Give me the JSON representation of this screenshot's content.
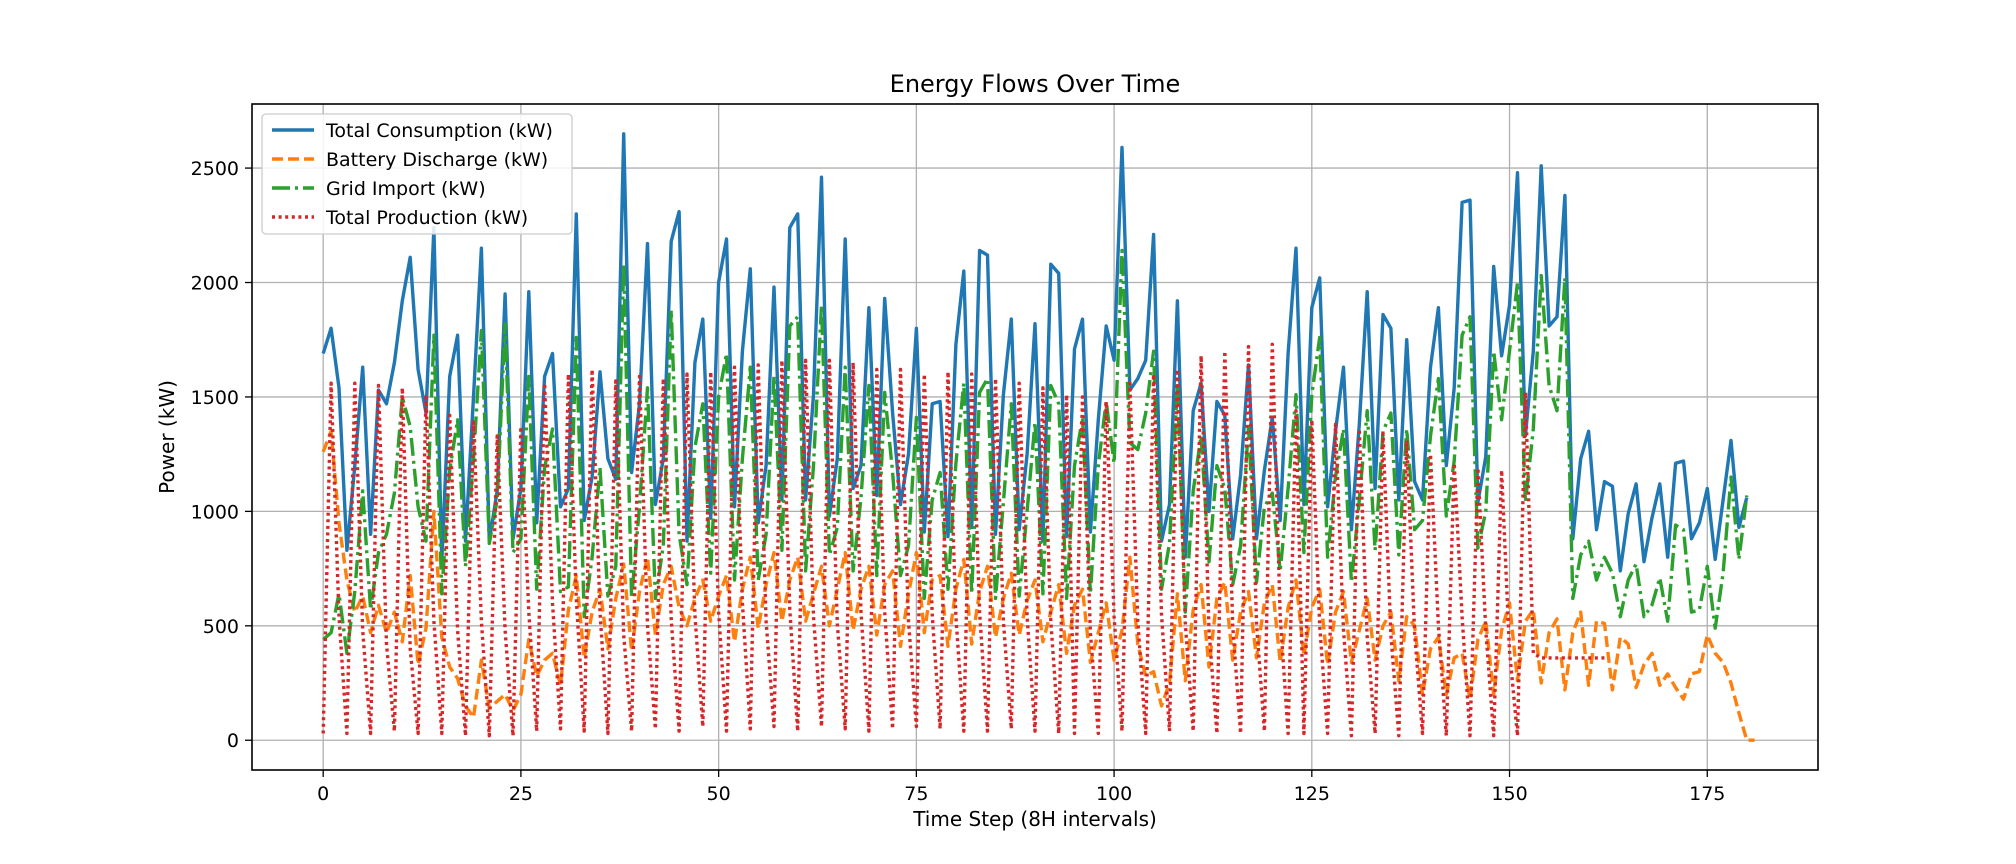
{
  "chart_data": {
    "type": "line",
    "title": "Energy Flows Over Time",
    "xlabel": "Time Step (8H intervals)",
    "ylabel": "Power (kW)",
    "xlim": [
      -9,
      189
    ],
    "ylim": [
      -130,
      2780
    ],
    "x_ticks": [
      0,
      25,
      50,
      75,
      100,
      125,
      150,
      175
    ],
    "y_ticks": [
      0,
      500,
      1000,
      1500,
      2000,
      2500
    ],
    "grid": true,
    "legend_position": "upper-left",
    "series": [
      {
        "name": "Total Consumption (kW)",
        "color": "#1f77b4",
        "style": "solid",
        "values": [
          1690,
          1800,
          1540,
          830,
          1200,
          1630,
          900,
          1530,
          1470,
          1650,
          1920,
          2110,
          1620,
          1430,
          2240,
          780,
          1590,
          1770,
          870,
          1500,
          2150,
          870,
          1090,
          1950,
          880,
          1100,
          1960,
          950,
          1590,
          1690,
          1020,
          1100,
          2300,
          960,
          1150,
          1610,
          1230,
          1140,
          2650,
          1170,
          1470,
          2170,
          1030,
          1230,
          2180,
          2310,
          870,
          1650,
          1840,
          970,
          2000,
          2190,
          1020,
          1700,
          2060,
          950,
          1200,
          1980,
          1050,
          2240,
          2300,
          1050,
          1510,
          2460,
          980,
          1230,
          2190,
          1100,
          1200,
          1890,
          1070,
          1930,
          1430,
          1030,
          1250,
          1800,
          910,
          1470,
          1480,
          890,
          1730,
          2050,
          930,
          2140,
          2120,
          900,
          1510,
          1840,
          920,
          1250,
          1820,
          870,
          2080,
          2040,
          890,
          1710,
          1840,
          910,
          1400,
          1810,
          1660,
          2590,
          1530,
          1580,
          1660,
          2210,
          870,
          1030,
          1920,
          800,
          1440,
          1560,
          1000,
          1480,
          1420,
          880,
          1160,
          1640,
          880,
          1180,
          1410,
          960,
          1690,
          2150,
          1030,
          1890,
          2020,
          1020,
          1350,
          1630,
          920,
          1380,
          1960,
          1100,
          1860,
          1800,
          1050,
          1750,
          1130,
          1050,
          1630,
          1890,
          1200,
          1540,
          2350,
          2360,
          1040,
          1240,
          2070,
          1680,
          1900,
          2480,
          1330,
          1700,
          2510,
          1810,
          1850,
          2380,
          880,
          1230,
          1350,
          920,
          1130,
          1110,
          740,
          990,
          1120,
          780,
          970,
          1120,
          800,
          1210,
          1220,
          880,
          950,
          1100,
          790,
          1050,
          1310,
          930,
          1060
        ]
      },
      {
        "name": "Battery Discharge (kW)",
        "color": "#ff7f0e",
        "style": "dashed",
        "values": [
          1260,
          1350,
          950,
          700,
          560,
          630,
          470,
          590,
          470,
          560,
          430,
          720,
          330,
          490,
          1000,
          450,
          320,
          270,
          150,
          100,
          350,
          140,
          170,
          200,
          130,
          200,
          440,
          280,
          350,
          380,
          240,
          570,
          720,
          360,
          560,
          660,
          400,
          620,
          770,
          390,
          650,
          800,
          460,
          680,
          760,
          580,
          500,
          620,
          700,
          520,
          630,
          720,
          430,
          660,
          800,
          490,
          680,
          820,
          520,
          700,
          800,
          520,
          640,
          760,
          500,
          660,
          820,
          480,
          660,
          760,
          460,
          680,
          740,
          410,
          640,
          820,
          470,
          700,
          720,
          410,
          660,
          790,
          420,
          650,
          760,
          450,
          620,
          730,
          460,
          610,
          700,
          430,
          560,
          680,
          380,
          590,
          660,
          340,
          470,
          600,
          350,
          480,
          800,
          420,
          280,
          300,
          150,
          250,
          640,
          260,
          570,
          680,
          320,
          620,
          690,
          350,
          560,
          650,
          360,
          600,
          680,
          340,
          580,
          700,
          370,
          580,
          660,
          330,
          560,
          650,
          340,
          480,
          620,
          350,
          500,
          560,
          260,
          540,
          500,
          200,
          400,
          450,
          200,
          360,
          380,
          180,
          440,
          520,
          200,
          480,
          600,
          260,
          520,
          570,
          250,
          470,
          530,
          220,
          470,
          560,
          240,
          520,
          510,
          220,
          450,
          420,
          230,
          330,
          380,
          240,
          290,
          230,
          180,
          290,
          300,
          460,
          380,
          340,
          250,
          120,
          0,
          0
        ]
      },
      {
        "name": "Grid Import (kW)",
        "color": "#2ca02c",
        "style": "dashdot",
        "values": [
          440,
          470,
          640,
          380,
          650,
          1090,
          570,
          820,
          900,
          1080,
          1500,
          1370,
          1020,
          870,
          1770,
          640,
          1180,
          1400,
          760,
          1230,
          1790,
          860,
          1050,
          1820,
          820,
          880,
          1590,
          660,
          1190,
          1360,
          650,
          670,
          1760,
          540,
          800,
          1190,
          630,
          760,
          2080,
          620,
          1020,
          1540,
          620,
          850,
          1880,
          900,
          680,
          1280,
          1470,
          730,
          1500,
          1690,
          700,
          1230,
          1630,
          700,
          900,
          1590,
          830,
          1810,
          1850,
          740,
          1200,
          1900,
          810,
          930,
          1630,
          740,
          1060,
          1550,
          720,
          1520,
          1170,
          720,
          850,
          1410,
          620,
          1050,
          1170,
          660,
          1210,
          1560,
          640,
          1520,
          1580,
          620,
          1040,
          1470,
          630,
          1000,
          1390,
          640,
          1550,
          1470,
          620,
          1200,
          1410,
          640,
          1200,
          1480,
          1210,
          2140,
          1300,
          1270,
          1430,
          1700,
          660,
          860,
          1560,
          560,
          1090,
          1330,
          780,
          1200,
          1100,
          680,
          850,
          1370,
          690,
          1020,
          1080,
          740,
          1100,
          1510,
          820,
          1510,
          1760,
          800,
          1150,
          1360,
          690,
          1050,
          1440,
          830,
          1350,
          1430,
          810,
          1360,
          920,
          960,
          1330,
          1580,
          980,
          1220,
          1770,
          1850,
          840,
          1000,
          1700,
          1400,
          1700,
          2000,
          1040,
          1360,
          2030,
          1550,
          1440,
          2020,
          620,
          810,
          870,
          700,
          800,
          730,
          540,
          700,
          770,
          540,
          590,
          710,
          520,
          940,
          920,
          560,
          570,
          760,
          490,
          730,
          1150,
          790,
          1070
        ]
      },
      {
        "name": "Total Production (kW)",
        "color": "#d62728",
        "style": "dotted",
        "values": [
          30,
          1560,
          540,
          30,
          1560,
          480,
          30,
          1550,
          420,
          40,
          1540,
          400,
          30,
          1500,
          520,
          30,
          1420,
          480,
          20,
          1390,
          520,
          20,
          1330,
          480,
          20,
          1370,
          560,
          40,
          1560,
          600,
          50,
          1600,
          620,
          40,
          1620,
          560,
          30,
          1570,
          460,
          40,
          1590,
          500,
          50,
          1580,
          530,
          40,
          1600,
          550,
          60,
          1610,
          560,
          40,
          1630,
          600,
          50,
          1640,
          520,
          60,
          1660,
          570,
          40,
          1660,
          540,
          60,
          1660,
          510,
          50,
          1650,
          560,
          40,
          1620,
          560,
          50,
          1620,
          520,
          60,
          1600,
          550,
          50,
          1610,
          540,
          40,
          1600,
          560,
          40,
          1580,
          520,
          50,
          1560,
          540,
          40,
          1540,
          520,
          30,
          1510,
          30,
          1500,
          470,
          30,
          1480,
          540,
          40,
          1560,
          520,
          30,
          1600,
          550,
          40,
          1620,
          510,
          40,
          1680,
          480,
          30,
          1700,
          500,
          30,
          1720,
          510,
          40,
          1730,
          540,
          30,
          1440,
          30,
          1400,
          500,
          30,
          1380,
          480,
          20,
          1360,
          450,
          30,
          1340,
          460,
          20,
          1310,
          470,
          30,
          1250,
          500,
          20,
          1210,
          540,
          20,
          1190,
          480,
          20,
          1180,
          390,
          20,
          1520,
          380,
          360,
          360,
          360,
          360,
          360,
          360,
          360,
          360,
          360
        ]
      }
    ]
  }
}
